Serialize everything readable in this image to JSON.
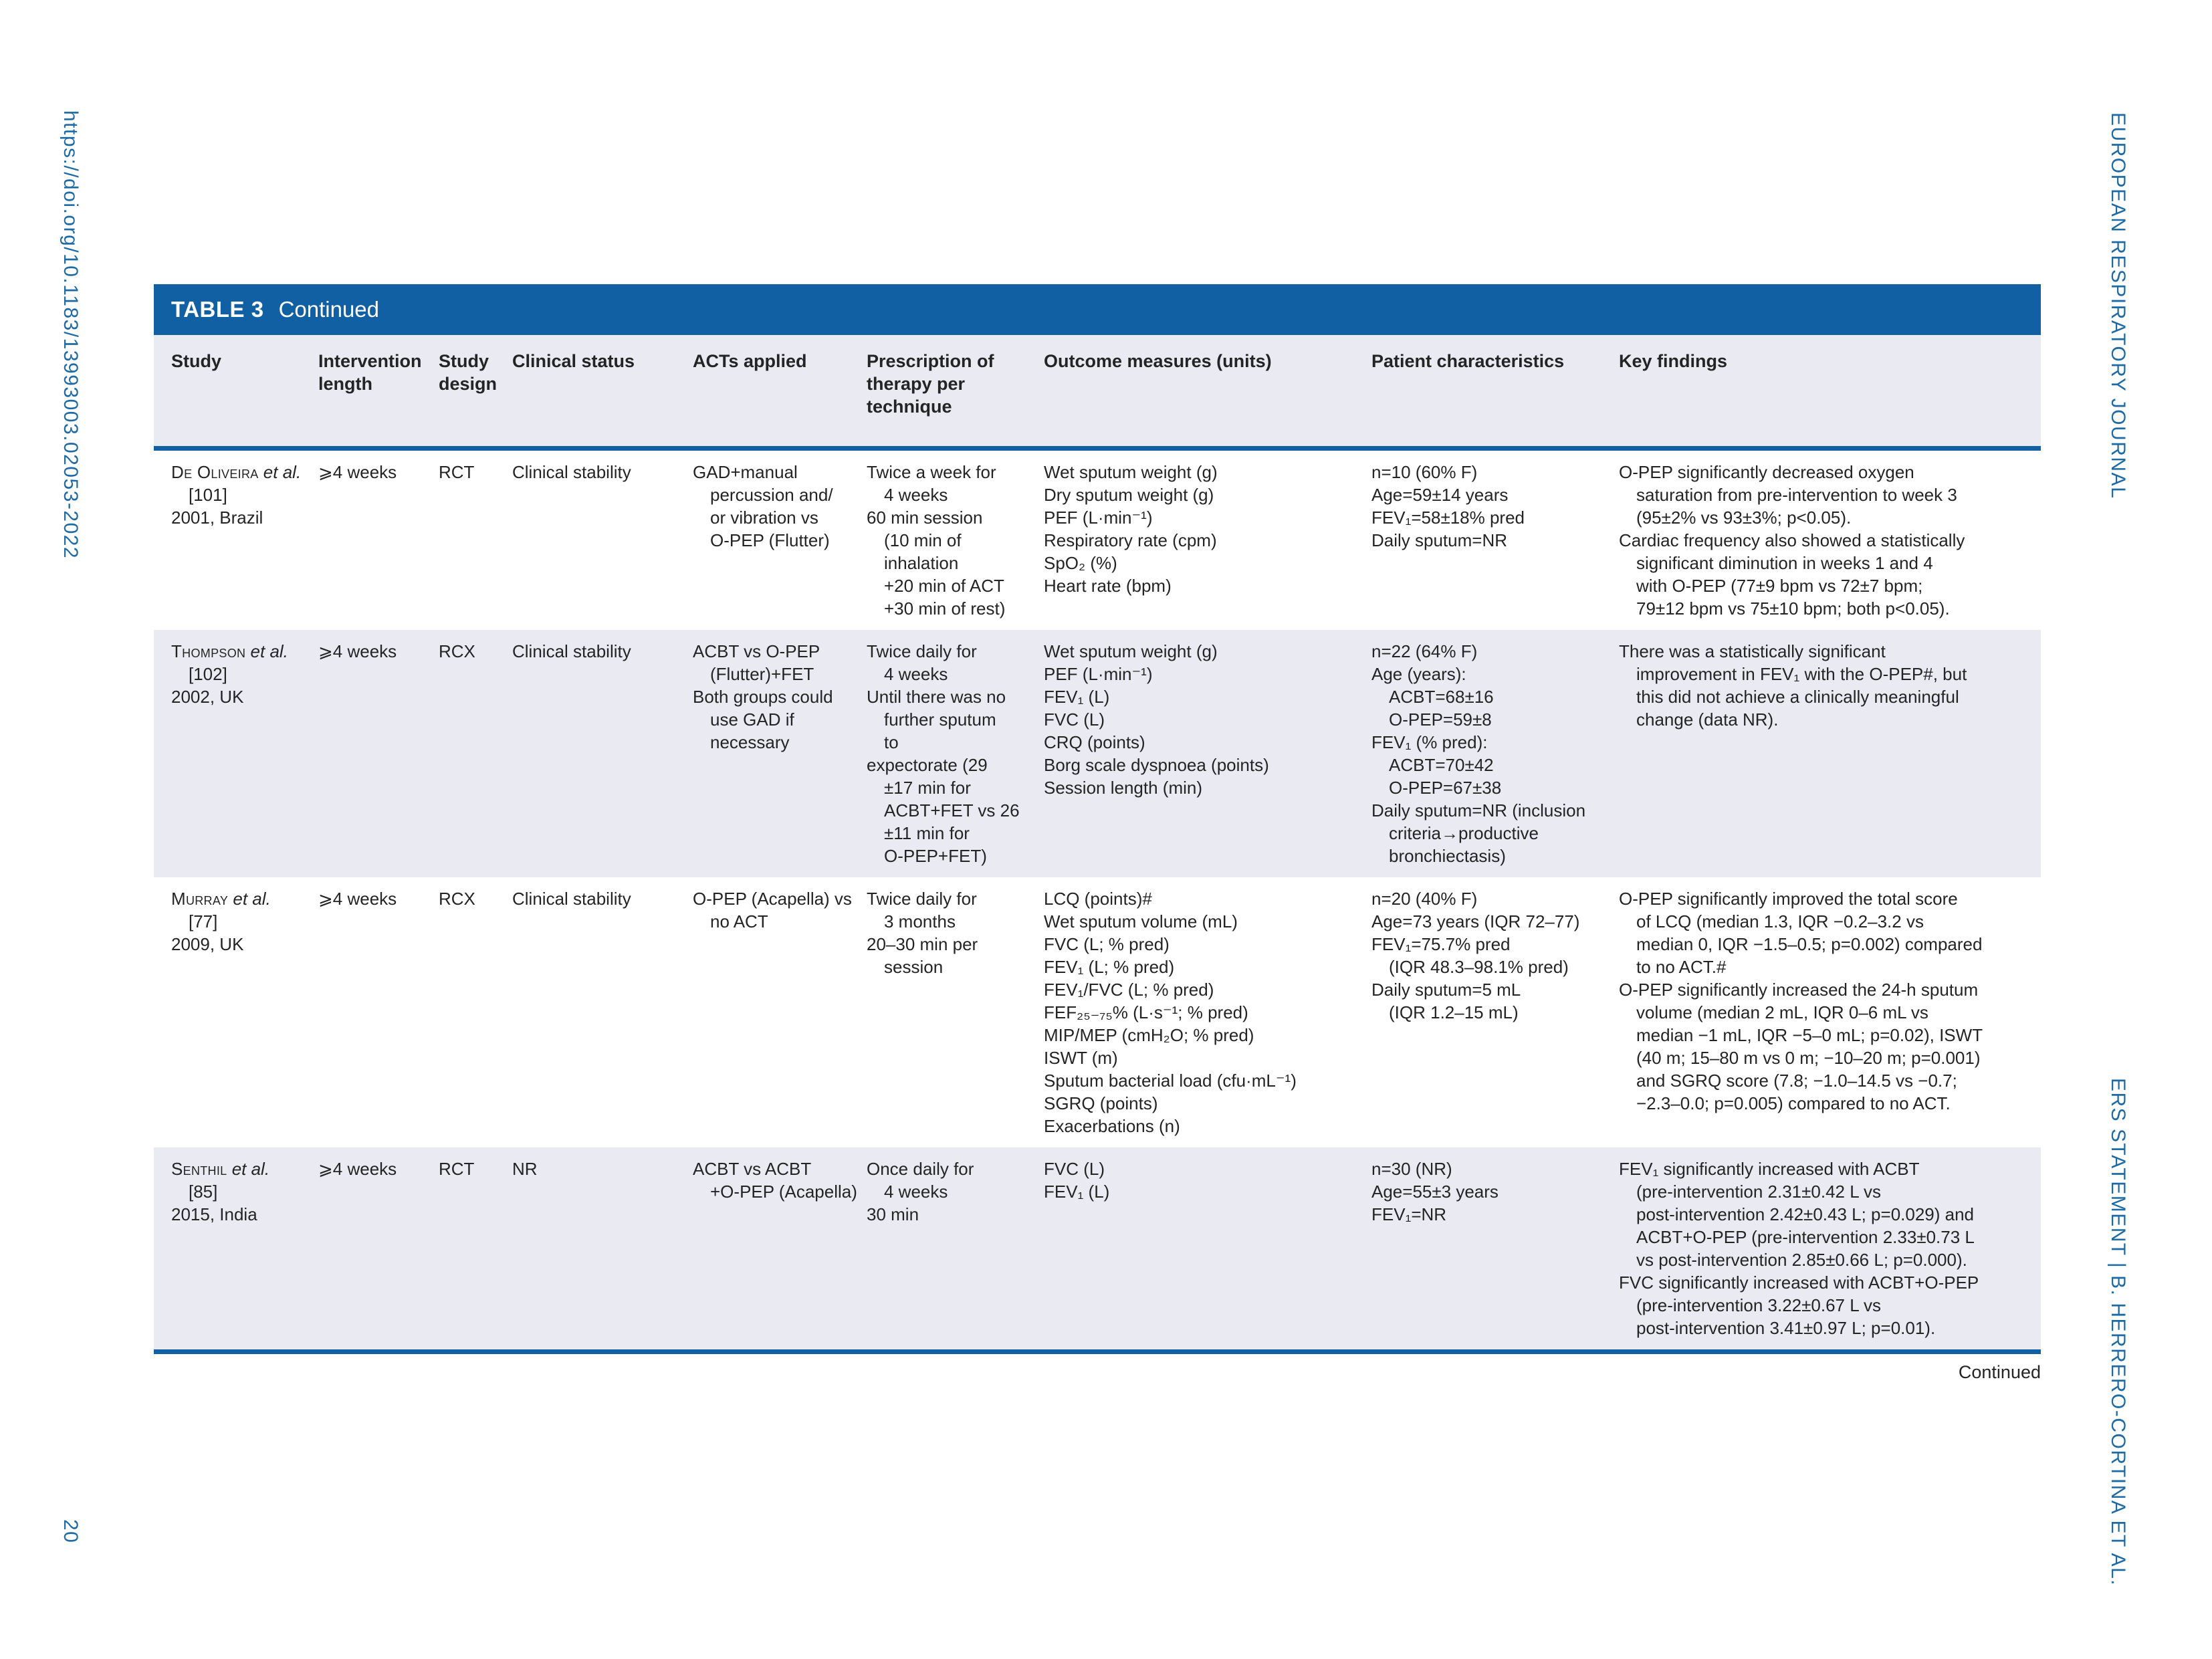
{
  "page": {
    "doi_vertical": "https://doi.org/10.1183/13993003.02053-2022",
    "journal_vertical": "EUROPEAN RESPIRATORY JOURNAL",
    "running_footer_vertical": "ERS STATEMENT | B. HERRERO-CORTINA ET AL.",
    "page_number": "20",
    "continued_note": "Continued"
  },
  "colors": {
    "accent_blue": "#1160a3",
    "row_stripe": "#e9eaf2",
    "side_text_blue": "#1e6aa5"
  },
  "table": {
    "title_label": "TABLE 3",
    "title_suffix": "Continued",
    "columns": [
      "Study",
      "Intervention length",
      "Study design",
      "Clinical status",
      "ACTs applied",
      "Prescription of therapy per technique",
      "Outcome measures (units)",
      "Patient characteristics",
      "Key findings"
    ],
    "rows": [
      {
        "study": {
          "author": "De Oliveira",
          "etal": "et al.",
          "ref": "[101]",
          "year": "2001, Brazil"
        },
        "intervention_length": "⩾4 weeks",
        "study_design": "RCT",
        "clinical_status": "Clinical stability",
        "acts_applied": [
          {
            "t": "GAD+manual"
          },
          {
            "t": "percussion and/",
            "i": 1
          },
          {
            "t": "or vibration vs",
            "i": 1
          },
          {
            "t": "O-PEP (Flutter)",
            "i": 1
          }
        ],
        "prescription": [
          {
            "t": "Twice a week for"
          },
          {
            "t": "4 weeks",
            "i": 1
          },
          {
            "t": "60 min session"
          },
          {
            "t": "(10 min of",
            "i": 1
          },
          {
            "t": "inhalation",
            "i": 1
          },
          {
            "t": "+20 min of ACT",
            "i": 1
          },
          {
            "t": "+30 min of rest)",
            "i": 1
          }
        ],
        "outcomes": [
          {
            "t": "Wet sputum weight (g)"
          },
          {
            "t": "Dry sputum weight (g)"
          },
          {
            "t": "PEF (L·min⁻¹)"
          },
          {
            "t": "Respiratory rate (cpm)"
          },
          {
            "t": "SpO₂ (%)"
          },
          {
            "t": "Heart rate (bpm)"
          }
        ],
        "patients": [
          {
            "t": "n=10 (60% F)"
          },
          {
            "t": "Age=59±14 years"
          },
          {
            "t": "FEV₁=58±18% pred"
          },
          {
            "t": "Daily sputum=NR"
          }
        ],
        "key_findings": [
          {
            "t": "O-PEP significantly decreased oxygen"
          },
          {
            "t": "saturation from pre-intervention to week 3",
            "i": 1
          },
          {
            "t": "(95±2% vs 93±3%; p<0.05).",
            "i": 1
          },
          {
            "t": "Cardiac frequency also showed a statistically"
          },
          {
            "t": "significant diminution in weeks 1 and 4",
            "i": 1
          },
          {
            "t": "with O-PEP (77±9 bpm vs 72±7 bpm;",
            "i": 1
          },
          {
            "t": "79±12 bpm vs 75±10 bpm; both p<0.05).",
            "i": 1
          }
        ]
      },
      {
        "study": {
          "author": "Thompson",
          "etal": "et al.",
          "ref": "[102]",
          "year": "2002, UK"
        },
        "intervention_length": "⩾4 weeks",
        "study_design": "RCX",
        "clinical_status": "Clinical stability",
        "acts_applied": [
          {
            "t": "ACBT vs O-PEP"
          },
          {
            "t": "(Flutter)+FET",
            "i": 1
          },
          {
            "t": "Both groups could"
          },
          {
            "t": "use GAD if",
            "i": 1
          },
          {
            "t": "necessary",
            "i": 1
          }
        ],
        "prescription": [
          {
            "t": "Twice daily for"
          },
          {
            "t": "4 weeks",
            "i": 1
          },
          {
            "t": "Until there was no"
          },
          {
            "t": "further sputum",
            "i": 1
          },
          {
            "t": "to",
            "i": 1
          },
          {
            "t": "expectorate (29"
          },
          {
            "t": "±17 min for",
            "i": 1
          },
          {
            "t": "ACBT+FET vs 26",
            "i": 1
          },
          {
            "t": "±11 min for",
            "i": 1
          },
          {
            "t": "O-PEP+FET)",
            "i": 1
          }
        ],
        "outcomes": [
          {
            "t": "Wet sputum weight (g)"
          },
          {
            "t": "PEF (L·min⁻¹)"
          },
          {
            "t": "FEV₁ (L)"
          },
          {
            "t": "FVC (L)"
          },
          {
            "t": "CRQ (points)"
          },
          {
            "t": "Borg scale dyspnoea (points)"
          },
          {
            "t": "Session length (min)"
          }
        ],
        "patients": [
          {
            "t": "n=22 (64% F)"
          },
          {
            "t": "Age (years):"
          },
          {
            "t": "ACBT=68±16",
            "i": 1
          },
          {
            "t": "O-PEP=59±8",
            "i": 1
          },
          {
            "t": "FEV₁ (% pred):"
          },
          {
            "t": "ACBT=70±42",
            "i": 1
          },
          {
            "t": "O-PEP=67±38",
            "i": 1
          },
          {
            "t": "Daily sputum=NR (inclusion"
          },
          {
            "t": "criteria→productive",
            "i": 1
          },
          {
            "t": "bronchiectasis)",
            "i": 1
          }
        ],
        "key_findings": [
          {
            "t": "There was a statistically significant"
          },
          {
            "t": "improvement in FEV₁ with the O-PEP#, but",
            "i": 1
          },
          {
            "t": "this did not achieve a clinically meaningful",
            "i": 1
          },
          {
            "t": "change (data NR).",
            "i": 1
          }
        ]
      },
      {
        "study": {
          "author": "Murray",
          "etal": "et al.",
          "ref": "[77]",
          "year": "2009, UK"
        },
        "intervention_length": "⩾4 weeks",
        "study_design": "RCX",
        "clinical_status": "Clinical stability",
        "acts_applied": [
          {
            "t": "O-PEP (Acapella) vs"
          },
          {
            "t": "no ACT",
            "i": 1
          }
        ],
        "prescription": [
          {
            "t": "Twice daily for"
          },
          {
            "t": "3 months",
            "i": 1
          },
          {
            "t": "20–30 min per"
          },
          {
            "t": "session",
            "i": 1
          }
        ],
        "outcomes": [
          {
            "t": "LCQ (points)#"
          },
          {
            "t": "Wet sputum volume (mL)"
          },
          {
            "t": "FVC (L; % pred)"
          },
          {
            "t": "FEV₁ (L; % pred)"
          },
          {
            "t": "FEV₁/FVC (L; % pred)"
          },
          {
            "t": "FEF₂₅₋₇₅% (L·s⁻¹; % pred)"
          },
          {
            "t": "MIP/MEP (cmH₂O; % pred)"
          },
          {
            "t": "ISWT (m)"
          },
          {
            "t": "Sputum bacterial load (cfu·mL⁻¹)"
          },
          {
            "t": "SGRQ (points)"
          },
          {
            "t": "Exacerbations (n)"
          }
        ],
        "patients": [
          {
            "t": "n=20 (40% F)"
          },
          {
            "t": "Age=73 years (IQR 72–77)"
          },
          {
            "t": "FEV₁=75.7% pred"
          },
          {
            "t": "(IQR 48.3–98.1% pred)",
            "i": 1
          },
          {
            "t": "Daily sputum=5 mL"
          },
          {
            "t": "(IQR 1.2–15 mL)",
            "i": 1
          }
        ],
        "key_findings": [
          {
            "t": "O-PEP significantly improved the total score"
          },
          {
            "t": "of LCQ (median 1.3, IQR −0.2–3.2 vs",
            "i": 1
          },
          {
            "t": "median 0, IQR −1.5–0.5; p=0.002) compared",
            "i": 1
          },
          {
            "t": "to no ACT.#",
            "i": 1
          },
          {
            "t": "O-PEP significantly increased the 24-h sputum"
          },
          {
            "t": "volume (median 2 mL, IQR 0–6 mL vs",
            "i": 1
          },
          {
            "t": "median −1 mL, IQR −5–0 mL; p=0.02), ISWT",
            "i": 1
          },
          {
            "t": "(40 m; 15–80 m vs 0 m; −10–20 m; p=0.001)",
            "i": 1
          },
          {
            "t": "and SGRQ score (7.8; −1.0–14.5 vs −0.7;",
            "i": 1
          },
          {
            "t": "−2.3–0.0; p=0.005) compared to no ACT.",
            "i": 1
          }
        ]
      },
      {
        "study": {
          "author": "Senthil",
          "etal": "et al.",
          "ref": "[85]",
          "year": "2015, India"
        },
        "intervention_length": "⩾4 weeks",
        "study_design": "RCT",
        "clinical_status": "NR",
        "acts_applied": [
          {
            "t": "ACBT vs ACBT"
          },
          {
            "t": "+O-PEP (Acapella)",
            "i": 1
          }
        ],
        "prescription": [
          {
            "t": "Once daily for"
          },
          {
            "t": "4 weeks",
            "i": 1
          },
          {
            "t": "30 min"
          }
        ],
        "outcomes": [
          {
            "t": "FVC (L)"
          },
          {
            "t": "FEV₁ (L)"
          }
        ],
        "patients": [
          {
            "t": "n=30 (NR)"
          },
          {
            "t": "Age=55±3 years"
          },
          {
            "t": "FEV₁=NR"
          }
        ],
        "key_findings": [
          {
            "t": "FEV₁ significantly increased with ACBT"
          },
          {
            "t": "(pre-intervention 2.31±0.42 L vs",
            "i": 1
          },
          {
            "t": "post-intervention 2.42±0.43 L; p=0.029) and",
            "i": 1
          },
          {
            "t": "ACBT+O-PEP (pre-intervention 2.33±0.73 L",
            "i": 1
          },
          {
            "t": "vs post-intervention 2.85±0.66 L; p=0.000).",
            "i": 1
          },
          {
            "t": "FVC significantly increased with ACBT+O-PEP"
          },
          {
            "t": "(pre-intervention 3.22±0.67 L vs",
            "i": 1
          },
          {
            "t": "post-intervention 3.41±0.97 L; p=0.01).",
            "i": 1
          }
        ]
      }
    ]
  }
}
